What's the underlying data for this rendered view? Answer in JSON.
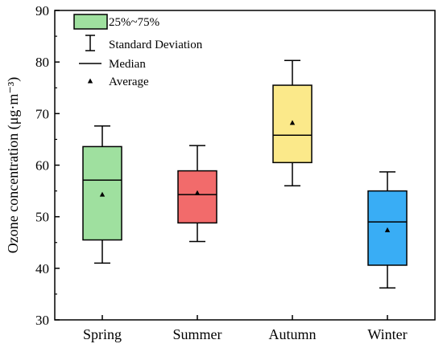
{
  "chart_data": {
    "type": "box",
    "ylabel": "Ozone concentration (μg·m⁻³)",
    "ylim": [
      30,
      90
    ],
    "yticks": [
      30,
      40,
      50,
      60,
      70,
      80,
      90
    ],
    "categories": [
      "Spring",
      "Summer",
      "Autumn",
      "Winter"
    ],
    "boxes": [
      {
        "category": "Spring",
        "color": "#9fe09f",
        "q1": 45.5,
        "q3": 63.6,
        "median": 57.1,
        "mean": 54.3,
        "whisker_low": 41.0,
        "whisker_high": 67.6
      },
      {
        "category": "Summer",
        "color": "#f26b6b",
        "q1": 48.8,
        "q3": 58.9,
        "median": 54.3,
        "mean": 54.6,
        "whisker_low": 45.2,
        "whisker_high": 63.8
      },
      {
        "category": "Autumn",
        "color": "#fbe98a",
        "q1": 60.5,
        "q3": 75.5,
        "median": 65.8,
        "mean": 68.2,
        "whisker_low": 56.0,
        "whisker_high": 80.3
      },
      {
        "category": "Winter",
        "color": "#39adf5",
        "q1": 40.6,
        "q3": 55.0,
        "median": 49.0,
        "mean": 47.4,
        "whisker_low": 36.2,
        "whisker_high": 58.7
      }
    ],
    "legend": {
      "position": "top-left",
      "items": [
        {
          "label": "25%~75%",
          "symbol": "box",
          "color": "#9fe09f"
        },
        {
          "label": "Standard Deviation",
          "symbol": "whisker"
        },
        {
          "label": "Median",
          "symbol": "line"
        },
        {
          "label": "Average",
          "symbol": "triangle"
        }
      ]
    }
  }
}
